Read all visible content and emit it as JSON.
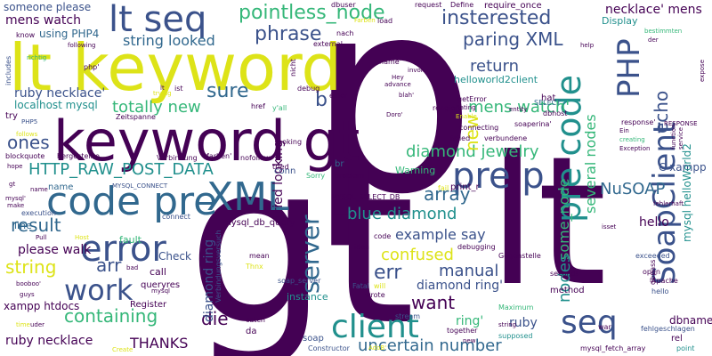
{
  "palette": {
    "dark_purple": "#440154",
    "indigo": "#3b528b",
    "blue": "#31688e",
    "teal": "#21908d",
    "green": "#35b779",
    "lime": "#90d743",
    "yellow": "#dde318"
  },
  "words": [
    {
      "text": "p"
    },
    {
      "text": "gt"
    },
    {
      "text": "lt"
    },
    {
      "text": "lt keyword"
    },
    {
      "text": "keyword gt"
    },
    {
      "text": "lt seq"
    },
    {
      "text": "code pre"
    },
    {
      "text": "XML"
    },
    {
      "text": "error"
    },
    {
      "text": "pre p"
    },
    {
      "text": "pre code"
    },
    {
      "text": "PHP"
    },
    {
      "text": "SoapClient"
    },
    {
      "text": "client"
    },
    {
      "text": "seq"
    },
    {
      "text": "work"
    },
    {
      "text": "server"
    },
    {
      "text": "pointless_node"
    },
    {
      "text": "insterested"
    },
    {
      "text": "phrase"
    },
    {
      "text": "paring XML"
    },
    {
      "text": "string looked"
    },
    {
      "text": "return"
    },
    {
      "text": "mens watch'"
    },
    {
      "text": "diamond jewelry"
    },
    {
      "text": "HTTP_RAW_POST_DATA"
    },
    {
      "text": "ones"
    },
    {
      "text": "totally new"
    },
    {
      "text": "sure"
    },
    {
      "text": "result"
    },
    {
      "text": "array"
    },
    {
      "text": "blue diamond"
    },
    {
      "text": "example say"
    },
    {
      "text": "NuSOAP"
    },
    {
      "text": "confused"
    },
    {
      "text": "manual"
    },
    {
      "text": "err"
    },
    {
      "text": "want"
    },
    {
      "text": "arr"
    },
    {
      "text": "string"
    },
    {
      "text": "containing"
    },
    {
      "text": "die"
    },
    {
      "text": "THANKS"
    },
    {
      "text": "uncertain number"
    },
    {
      "text": "ruby necklace"
    },
    {
      "text": "ruby necklace'"
    },
    {
      "text": "diamond ring'"
    },
    {
      "text": "diamond ring"
    },
    {
      "text": "mens watch"
    },
    {
      "text": "necklace' mens"
    },
    {
      "text": "using PHP4"
    },
    {
      "text": "localhost mysql"
    },
    {
      "text": "several nodes"
    },
    {
      "text": "some_node"
    },
    {
      "text": "nodes"
    },
    {
      "text": "new"
    },
    {
      "text": "echo"
    },
    {
      "text": "please walk"
    },
    {
      "text": "someone please"
    },
    {
      "text": "tried looking"
    },
    {
      "text": "ring'"
    },
    {
      "text": "ruby"
    },
    {
      "text": "b"
    },
    {
      "text": "xampp htdocs"
    },
    {
      "text": "hello"
    },
    {
      "text": "C xampp"
    },
    {
      "text": "mysql helloWorld2"
    },
    {
      "text": "dbname"
    },
    {
      "text": "Display"
    },
    {
      "text": "helloworld2client"
    },
    {
      "text": "SELECT"
    },
    {
      "text": "fault"
    },
    {
      "text": "Check"
    },
    {
      "text": "call"
    },
    {
      "text": "queryres"
    },
    {
      "text": "Register"
    },
    {
      "text": "mysql_db_query"
    },
    {
      "text": "MYSQL_SELECT_DB"
    },
    {
      "text": "MYSQL_CONNECT"
    },
    {
      "text": "Warning"
    },
    {
      "text": "name"
    },
    {
      "text": "line"
    },
    {
      "text": "execution"
    },
    {
      "text": "instance"
    },
    {
      "text": "soap_server"
    },
    {
      "text": "soap"
    },
    {
      "text": "catch"
    },
    {
      "text": "da"
    },
    {
      "text": "Constructor"
    },
    {
      "text": "mysql_fetch_array"
    },
    {
      "text": "rel"
    },
    {
      "text": "fehlgeschlagen"
    },
    {
      "text": "point"
    },
    {
      "text": "hello"
    },
    {
      "text": "Apache"
    },
    {
      "text": "open"
    },
    {
      "text": "exceeded"
    },
    {
      "text": "dbpass"
    },
    {
      "text": "seconds"
    },
    {
      "text": "method"
    },
    {
      "text": "Maximum"
    },
    {
      "text": "supposed"
    },
    {
      "text": "Gegenstelle"
    },
    {
      "text": "debugging"
    },
    {
      "text": "idea"
    },
    {
      "text": "code"
    },
    {
      "text": "Fatal"
    },
    {
      "text": "wrote"
    },
    {
      "text": "will"
    },
    {
      "text": "stream"
    },
    {
      "text": "together"
    },
    {
      "text": "war"
    },
    {
      "text": "mean"
    },
    {
      "text": "Thnx"
    },
    {
      "text": "print_r"
    },
    {
      "text": "fail"
    },
    {
      "text": "problem"
    },
    {
      "text": "Sorry"
    },
    {
      "text": "br"
    },
    {
      "text": "conn"
    },
    {
      "text": "Verbindungsversuch"
    },
    {
      "text": "connect"
    },
    {
      "text": "tried"
    },
    {
      "text": "looking"
    },
    {
      "text": "nofollow"
    },
    {
      "text": "Verbindung"
    },
    {
      "text": "farben'"
    },
    {
      "text": "hergestellte"
    },
    {
      "text": "blockquote"
    },
    {
      "text": "follows"
    },
    {
      "text": "PHP5"
    },
    {
      "text": "try"
    },
    {
      "text": "Zeitspanne"
    },
    {
      "text": "href"
    },
    {
      "text": "y'all"
    },
    {
      "text": "debug"
    },
    {
      "text": "ist"
    },
    {
      "text": "php'"
    },
    {
      "text": "following"
    },
    {
      "text": "know"
    },
    {
      "text": "richtig"
    },
    {
      "text": "includes"
    },
    {
      "text": "dbuser"
    },
    {
      "text": "Farben"
    },
    {
      "text": "load"
    },
    {
      "text": "request"
    },
    {
      "text": "Define"
    },
    {
      "text": "require_once"
    },
    {
      "text": "nach"
    },
    {
      "text": "external"
    },
    {
      "text": "nicht"
    },
    {
      "text": "einer"
    },
    {
      "text": "reagiert"
    },
    {
      "text": "getError"
    },
    {
      "text": "Rating"
    },
    {
      "text": "entity"
    },
    {
      "text": "Enable"
    },
    {
      "text": "Doro'"
    },
    {
      "text": "name'"
    },
    {
      "text": "Hey"
    },
    {
      "text": "advance"
    },
    {
      "text": "blah'"
    },
    {
      "text": "invoke"
    },
    {
      "text": "connecting"
    },
    {
      "text": "failed"
    },
    {
      "text": "verbundene"
    },
    {
      "text": "soaperina'"
    },
    {
      "text": "dbhost"
    },
    {
      "text": "hat"
    },
    {
      "text": "help"
    },
    {
      "text": "bestimmten"
    },
    {
      "text": "der"
    },
    {
      "text": "expose"
    },
    {
      "text": "response'"
    },
    {
      "text": "Ein"
    },
    {
      "text": "creating"
    },
    {
      "text": "Exception"
    },
    {
      "text": "function"
    },
    {
      "text": "service"
    },
    {
      "text": "RESPONSE"
    },
    {
      "text": "fehlerhaft"
    },
    {
      "text": "isset"
    },
    {
      "text": "Pull"
    },
    {
      "text": "Host"
    },
    {
      "text": "make"
    },
    {
      "text": "mysql'"
    },
    {
      "text": "hope"
    },
    {
      "text": "gt"
    },
    {
      "text": "booboo'"
    },
    {
      "text": "guys"
    },
    {
      "text": "bad"
    },
    {
      "text": "mysql"
    },
    {
      "text": "time"
    },
    {
      "text": "uder"
    },
    {
      "text": "Create"
    },
    {
      "text": "AdoB'"
    },
    {
      "text": "trying"
    },
    {
      "text": "lt"
    },
    {
      "text": "string"
    },
    {
      "text": "new"
    },
    {
      "text": "name"
    }
  ]
}
